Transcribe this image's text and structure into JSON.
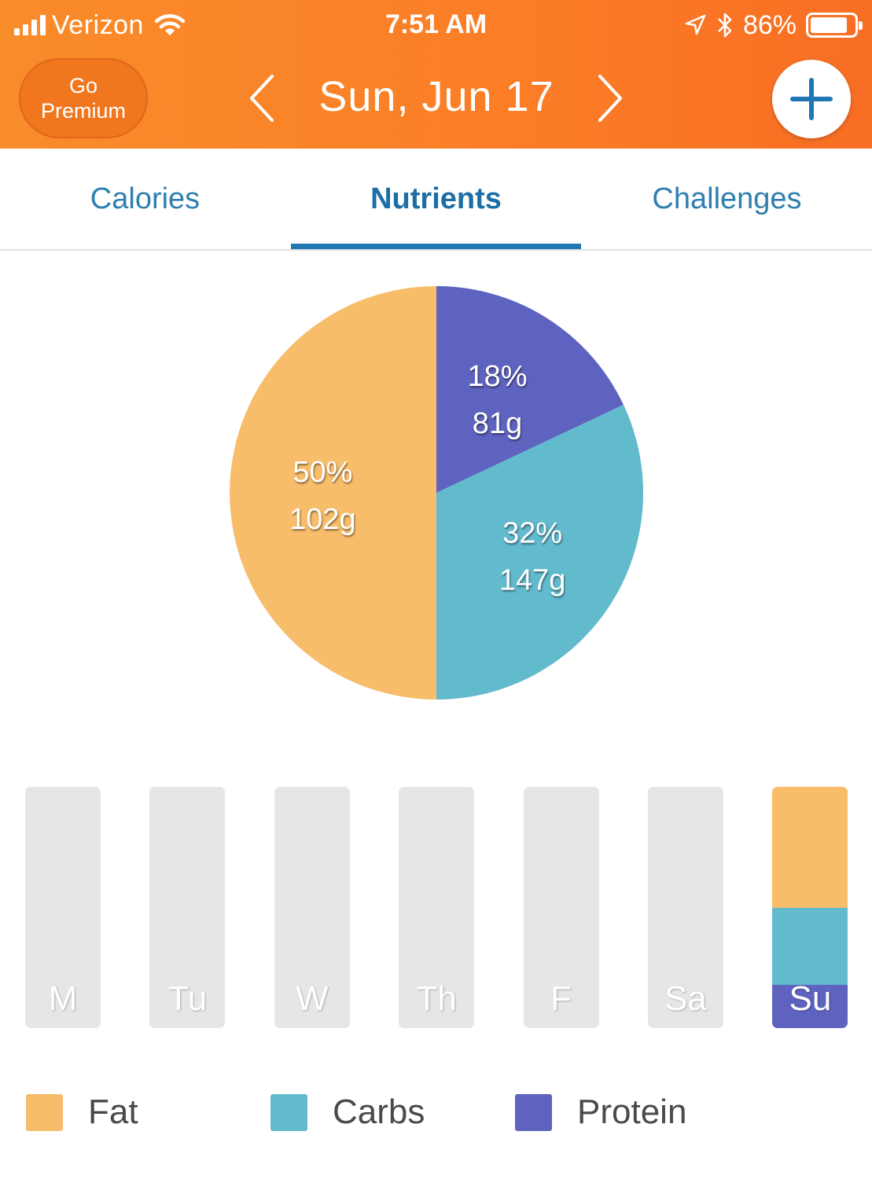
{
  "status_bar": {
    "carrier": "Verizon",
    "time": "7:51 AM",
    "battery": "86%",
    "battery_level": 0.86,
    "icons": [
      "signal-icon",
      "wifi-icon",
      "location-arrow-icon",
      "bluetooth-icon",
      "battery-icon"
    ]
  },
  "header": {
    "premium_line1": "Go",
    "premium_line2": "Premium",
    "date": "Sun, Jun 17",
    "prev_icon": "chevron-left-icon",
    "next_icon": "chevron-right-icon",
    "add_icon": "plus-icon"
  },
  "tabs": [
    {
      "label": "Calories",
      "active": false
    },
    {
      "label": "Nutrients",
      "active": true
    },
    {
      "label": "Challenges",
      "active": false
    }
  ],
  "colors": {
    "header": "#f98c2a",
    "fat": "#f7bd6a",
    "carbs": "#62bacd",
    "protein": "#5e63bf",
    "tab_text": "#2f7fae",
    "bar_bg": "#e6e6e6"
  },
  "chart_data": [
    {
      "type": "pie",
      "slices": [
        {
          "name": "Protein",
          "percent": 18,
          "grams": 81,
          "pct_label": "18%",
          "grams_label": "81g",
          "color": "#5e63bf"
        },
        {
          "name": "Carbs",
          "percent": 32,
          "grams": 147,
          "pct_label": "32%",
          "grams_label": "147g",
          "color": "#62bacd"
        },
        {
          "name": "Fat",
          "percent": 50,
          "grams": 102,
          "pct_label": "50%",
          "grams_label": "102g",
          "color": "#f7bd6a"
        }
      ]
    },
    {
      "type": "bar",
      "stacked": true,
      "categories": [
        "M",
        "Tu",
        "W",
        "Th",
        "F",
        "Sa",
        "Su"
      ],
      "series": [
        {
          "name": "Protein",
          "values": [
            0,
            0,
            0,
            0,
            0,
            0,
            18
          ]
        },
        {
          "name": "Carbs",
          "values": [
            0,
            0,
            0,
            0,
            0,
            0,
            32
          ]
        },
        {
          "name": "Fat",
          "values": [
            0,
            0,
            0,
            0,
            0,
            0,
            50
          ]
        }
      ],
      "legend": [
        {
          "label": "Fat",
          "color": "#f7bd6a"
        },
        {
          "label": "Carbs",
          "color": "#62bacd"
        },
        {
          "label": "Protein",
          "color": "#5e63bf"
        }
      ]
    }
  ]
}
